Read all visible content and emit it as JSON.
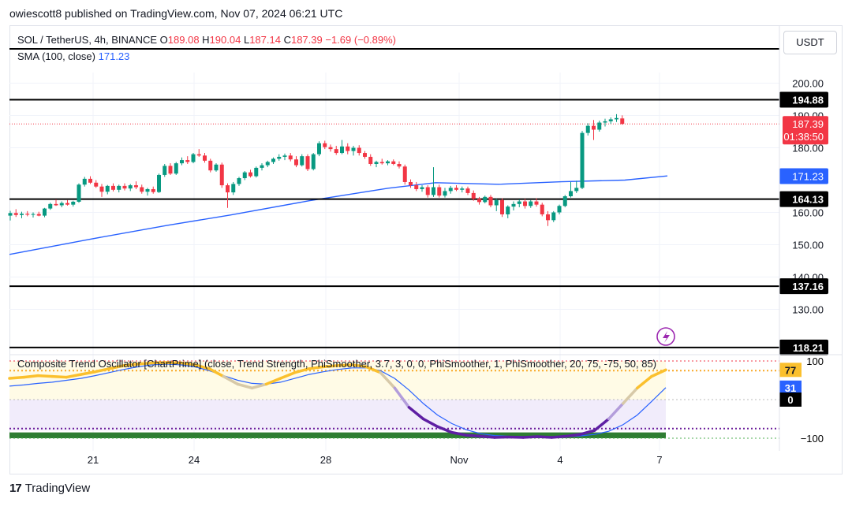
{
  "publisher": "owiescott8 published on TradingView.com, Nov 07, 2024 06:21 UTC",
  "legend": {
    "symbol": "SOL / TetherUS, 4h, BINANCE",
    "o_label": "O",
    "o": "189.08",
    "h_label": "H",
    "h": "190.04",
    "l_label": "L",
    "l": "187.14",
    "c_label": "C",
    "c": "187.39",
    "change": "−1.69 (−0.89%)",
    "sma_label": "SMA (100, close)",
    "sma_value": "171.23"
  },
  "currency_button": "USDT",
  "oscillator_legend": "Composite Trend Oscillator [ChartPrime] (close, Trend Strength, PhiSmoother, 3.7, 3, 0, 0, PhiSmoother, 1, PhiSmoother, 20, 75, -75, 50, 85)",
  "footer": {
    "logo_mark": "17",
    "brand": "TradingView"
  },
  "colors": {
    "up": "#089981",
    "down": "#f23645",
    "sma": "#2962ff",
    "level": "#000000"
  },
  "chart_data": {
    "type": "candlestick",
    "title": "SOL / TetherUS, 4h, BINANCE",
    "x_ticks": [
      "21",
      "24",
      "28",
      "Nov",
      "4",
      "7"
    ],
    "y_ticks": [
      200,
      190,
      180,
      160,
      150,
      140,
      130
    ],
    "ylim": [
      117,
      206
    ],
    "price_labels": {
      "current_price": "187.39",
      "countdown": "01:38:50",
      "sma": "171.23"
    },
    "levels": [
      194.88,
      164.13,
      137.16,
      118.21
    ],
    "sma": [
      {
        "x": 0,
        "y": 147
      },
      {
        "x": 100,
        "y": 151.6
      },
      {
        "x": 200,
        "y": 156
      },
      {
        "x": 280,
        "y": 159.2
      },
      {
        "x": 380,
        "y": 163.6
      },
      {
        "x": 480,
        "y": 167.5
      },
      {
        "x": 540,
        "y": 169.2
      },
      {
        "x": 620,
        "y": 168.7
      },
      {
        "x": 700,
        "y": 169.5
      },
      {
        "x": 780,
        "y": 170
      },
      {
        "x": 834,
        "y": 171.3
      }
    ],
    "candles": [
      {
        "o": 159.0,
        "h": 160.5,
        "l": 157.5,
        "c": 159.8
      },
      {
        "o": 159.8,
        "h": 161.0,
        "l": 158.6,
        "c": 159.2
      },
      {
        "o": 159.2,
        "h": 160.2,
        "l": 158.2,
        "c": 159.6
      },
      {
        "o": 159.6,
        "h": 160.4,
        "l": 158.8,
        "c": 159.3
      },
      {
        "o": 159.3,
        "h": 160.0,
        "l": 158.4,
        "c": 159.5
      },
      {
        "o": 159.5,
        "h": 160.2,
        "l": 158.8,
        "c": 159.0
      },
      {
        "o": 159.0,
        "h": 161.4,
        "l": 158.5,
        "c": 161.2
      },
      {
        "o": 161.2,
        "h": 163.0,
        "l": 160.8,
        "c": 162.6
      },
      {
        "o": 162.6,
        "h": 164.0,
        "l": 162.0,
        "c": 162.2
      },
      {
        "o": 162.2,
        "h": 163.4,
        "l": 161.6,
        "c": 162.9
      },
      {
        "o": 162.9,
        "h": 163.8,
        "l": 162.1,
        "c": 162.4
      },
      {
        "o": 162.4,
        "h": 163.6,
        "l": 161.8,
        "c": 163.3
      },
      {
        "o": 163.3,
        "h": 169.0,
        "l": 163.0,
        "c": 168.6
      },
      {
        "o": 168.6,
        "h": 171.0,
        "l": 168.0,
        "c": 170.4
      },
      {
        "o": 170.4,
        "h": 171.2,
        "l": 168.8,
        "c": 169.2
      },
      {
        "o": 169.2,
        "h": 170.0,
        "l": 167.6,
        "c": 168.0
      },
      {
        "o": 168.0,
        "h": 168.8,
        "l": 164.8,
        "c": 166.4
      },
      {
        "o": 166.4,
        "h": 168.5,
        "l": 165.6,
        "c": 168.2
      },
      {
        "o": 168.2,
        "h": 169.0,
        "l": 166.5,
        "c": 167.0
      },
      {
        "o": 167.0,
        "h": 168.6,
        "l": 166.2,
        "c": 168.2
      },
      {
        "o": 168.2,
        "h": 169.0,
        "l": 166.8,
        "c": 167.4
      },
      {
        "o": 167.4,
        "h": 168.8,
        "l": 166.6,
        "c": 168.4
      },
      {
        "o": 168.4,
        "h": 169.6,
        "l": 167.2,
        "c": 167.8
      },
      {
        "o": 167.8,
        "h": 168.6,
        "l": 165.8,
        "c": 166.4
      },
      {
        "o": 166.4,
        "h": 167.6,
        "l": 165.2,
        "c": 167.2
      },
      {
        "o": 167.2,
        "h": 168.0,
        "l": 165.8,
        "c": 166.3
      },
      {
        "o": 166.3,
        "h": 172.0,
        "l": 166.0,
        "c": 171.6
      },
      {
        "o": 171.6,
        "h": 175.0,
        "l": 171.0,
        "c": 174.4
      },
      {
        "o": 174.4,
        "h": 175.2,
        "l": 171.6,
        "c": 172.0
      },
      {
        "o": 172.0,
        "h": 175.6,
        "l": 171.6,
        "c": 175.2
      },
      {
        "o": 175.2,
        "h": 177.0,
        "l": 174.6,
        "c": 176.2
      },
      {
        "o": 176.2,
        "h": 177.4,
        "l": 175.0,
        "c": 175.6
      },
      {
        "o": 175.6,
        "h": 178.4,
        "l": 175.2,
        "c": 178.0
      },
      {
        "o": 178.0,
        "h": 179.6,
        "l": 177.2,
        "c": 177.6
      },
      {
        "o": 177.6,
        "h": 178.4,
        "l": 175.4,
        "c": 176.0
      },
      {
        "o": 176.0,
        "h": 176.6,
        "l": 172.4,
        "c": 173.0
      },
      {
        "o": 173.0,
        "h": 175.2,
        "l": 172.6,
        "c": 174.8
      },
      {
        "o": 174.8,
        "h": 175.4,
        "l": 167.6,
        "c": 168.4
      },
      {
        "o": 168.4,
        "h": 169.0,
        "l": 161.4,
        "c": 166.2
      },
      {
        "o": 166.2,
        "h": 169.4,
        "l": 165.4,
        "c": 168.8
      },
      {
        "o": 168.8,
        "h": 171.0,
        "l": 168.2,
        "c": 170.6
      },
      {
        "o": 170.6,
        "h": 172.8,
        "l": 170.0,
        "c": 172.4
      },
      {
        "o": 172.4,
        "h": 173.2,
        "l": 170.8,
        "c": 171.2
      },
      {
        "o": 171.2,
        "h": 174.2,
        "l": 170.8,
        "c": 173.8
      },
      {
        "o": 173.8,
        "h": 175.2,
        "l": 173.0,
        "c": 174.6
      },
      {
        "o": 174.6,
        "h": 176.0,
        "l": 174.0,
        "c": 175.6
      },
      {
        "o": 175.6,
        "h": 177.0,
        "l": 175.0,
        "c": 176.6
      },
      {
        "o": 176.6,
        "h": 178.0,
        "l": 176.0,
        "c": 177.2
      },
      {
        "o": 177.2,
        "h": 178.2,
        "l": 176.2,
        "c": 177.6
      },
      {
        "o": 177.6,
        "h": 178.4,
        "l": 175.8,
        "c": 176.4
      },
      {
        "o": 176.4,
        "h": 177.4,
        "l": 174.0,
        "c": 174.6
      },
      {
        "o": 174.6,
        "h": 178.0,
        "l": 174.2,
        "c": 177.4
      },
      {
        "o": 177.4,
        "h": 178.0,
        "l": 172.8,
        "c": 173.4
      },
      {
        "o": 173.4,
        "h": 178.4,
        "l": 173.0,
        "c": 178.0
      },
      {
        "o": 178.0,
        "h": 182.0,
        "l": 177.4,
        "c": 181.4
      },
      {
        "o": 181.4,
        "h": 182.2,
        "l": 179.6,
        "c": 180.2
      },
      {
        "o": 180.2,
        "h": 181.0,
        "l": 178.8,
        "c": 179.6
      },
      {
        "o": 179.6,
        "h": 180.6,
        "l": 177.8,
        "c": 178.4
      },
      {
        "o": 178.4,
        "h": 182.4,
        "l": 178.0,
        "c": 180.4
      },
      {
        "o": 180.4,
        "h": 181.4,
        "l": 178.0,
        "c": 179.0
      },
      {
        "o": 179.0,
        "h": 180.6,
        "l": 177.6,
        "c": 180.0
      },
      {
        "o": 180.0,
        "h": 180.8,
        "l": 177.6,
        "c": 178.4
      },
      {
        "o": 178.4,
        "h": 179.0,
        "l": 176.6,
        "c": 177.2
      },
      {
        "o": 177.2,
        "h": 178.0,
        "l": 174.4,
        "c": 175.0
      },
      {
        "o": 175.0,
        "h": 176.0,
        "l": 174.0,
        "c": 175.6
      },
      {
        "o": 175.6,
        "h": 176.6,
        "l": 174.8,
        "c": 175.2
      },
      {
        "o": 175.2,
        "h": 176.2,
        "l": 174.6,
        "c": 175.8
      },
      {
        "o": 175.8,
        "h": 176.4,
        "l": 174.6,
        "c": 175.0
      },
      {
        "o": 175.0,
        "h": 175.8,
        "l": 173.6,
        "c": 174.2
      },
      {
        "o": 174.2,
        "h": 174.8,
        "l": 168.6,
        "c": 169.4
      },
      {
        "o": 169.4,
        "h": 170.2,
        "l": 167.6,
        "c": 168.4
      },
      {
        "o": 168.4,
        "h": 169.4,
        "l": 166.6,
        "c": 167.2
      },
      {
        "o": 167.2,
        "h": 168.4,
        "l": 166.4,
        "c": 167.8
      },
      {
        "o": 167.8,
        "h": 168.4,
        "l": 164.6,
        "c": 165.4
      },
      {
        "o": 165.4,
        "h": 174.0,
        "l": 164.8,
        "c": 167.8
      },
      {
        "o": 167.8,
        "h": 168.6,
        "l": 164.6,
        "c": 165.2
      },
      {
        "o": 165.2,
        "h": 167.6,
        "l": 164.6,
        "c": 166.6
      },
      {
        "o": 166.6,
        "h": 168.2,
        "l": 165.8,
        "c": 167.6
      },
      {
        "o": 167.6,
        "h": 168.4,
        "l": 166.6,
        "c": 167.0
      },
      {
        "o": 167.0,
        "h": 168.0,
        "l": 166.2,
        "c": 167.4
      },
      {
        "o": 167.4,
        "h": 168.0,
        "l": 165.4,
        "c": 166.0
      },
      {
        "o": 166.0,
        "h": 166.8,
        "l": 163.6,
        "c": 164.2
      },
      {
        "o": 164.2,
        "h": 164.8,
        "l": 162.4,
        "c": 163.2
      },
      {
        "o": 163.2,
        "h": 165.2,
        "l": 162.8,
        "c": 164.8
      },
      {
        "o": 164.8,
        "h": 165.4,
        "l": 161.6,
        "c": 162.2
      },
      {
        "o": 162.2,
        "h": 164.2,
        "l": 160.4,
        "c": 163.8
      },
      {
        "o": 163.8,
        "h": 164.4,
        "l": 158.6,
        "c": 159.4
      },
      {
        "o": 159.4,
        "h": 162.2,
        "l": 158.2,
        "c": 161.8
      },
      {
        "o": 161.8,
        "h": 163.4,
        "l": 160.6,
        "c": 162.6
      },
      {
        "o": 162.6,
        "h": 164.0,
        "l": 161.6,
        "c": 163.4
      },
      {
        "o": 163.4,
        "h": 164.2,
        "l": 161.2,
        "c": 162.0
      },
      {
        "o": 162.0,
        "h": 163.8,
        "l": 161.4,
        "c": 163.4
      },
      {
        "o": 163.4,
        "h": 164.4,
        "l": 161.8,
        "c": 162.4
      },
      {
        "o": 162.4,
        "h": 163.0,
        "l": 158.8,
        "c": 159.4
      },
      {
        "o": 159.4,
        "h": 160.4,
        "l": 155.8,
        "c": 157.6
      },
      {
        "o": 157.6,
        "h": 160.4,
        "l": 157.0,
        "c": 160.0
      },
      {
        "o": 160.0,
        "h": 162.4,
        "l": 159.4,
        "c": 162.0
      },
      {
        "o": 162.0,
        "h": 165.4,
        "l": 161.6,
        "c": 165.0
      },
      {
        "o": 165.0,
        "h": 169.4,
        "l": 164.6,
        "c": 166.6
      },
      {
        "o": 166.6,
        "h": 169.8,
        "l": 166.0,
        "c": 167.6
      },
      {
        "o": 167.6,
        "h": 185.2,
        "l": 167.2,
        "c": 184.6
      },
      {
        "o": 184.6,
        "h": 187.6,
        "l": 183.8,
        "c": 186.8
      },
      {
        "o": 186.8,
        "h": 188.6,
        "l": 182.4,
        "c": 185.6
      },
      {
        "o": 185.6,
        "h": 188.4,
        "l": 185.0,
        "c": 187.8
      },
      {
        "o": 187.8,
        "h": 189.0,
        "l": 186.6,
        "c": 188.2
      },
      {
        "o": 188.2,
        "h": 189.4,
        "l": 187.4,
        "c": 188.8
      },
      {
        "o": 188.8,
        "h": 190.4,
        "l": 188.0,
        "c": 189.2
      },
      {
        "o": 189.08,
        "h": 190.04,
        "l": 187.14,
        "c": 187.39
      }
    ],
    "oscillator": {
      "y_ticks": [
        100,
        0,
        -100
      ],
      "ylim": [
        -105,
        105
      ],
      "labels": [
        "77",
        "31",
        "0"
      ],
      "upper_band": 75,
      "lower_band": -75,
      "fast": [
        55,
        58,
        62,
        60,
        58,
        65,
        72,
        80,
        88,
        92,
        95,
        96,
        95,
        90,
        80,
        60,
        40,
        30,
        40,
        55,
        70,
        80,
        85,
        88,
        90,
        85,
        70,
        30,
        -20,
        -50,
        -70,
        -85,
        -92,
        -95,
        -98,
        -97,
        -98,
        -96,
        -98,
        -95,
        -90,
        -80,
        -50,
        -10,
        30,
        60,
        77
      ],
      "slow": [
        35,
        38,
        42,
        45,
        50,
        55,
        62,
        70,
        78,
        85,
        90,
        92,
        90,
        85,
        75,
        62,
        50,
        42,
        40,
        45,
        55,
        65,
        72,
        78,
        82,
        82,
        75,
        55,
        25,
        -10,
        -40,
        -62,
        -78,
        -88,
        -93,
        -95,
        -96,
        -96,
        -97,
        -96,
        -94,
        -90,
        -82,
        -65,
        -40,
        -5,
        31
      ]
    }
  }
}
